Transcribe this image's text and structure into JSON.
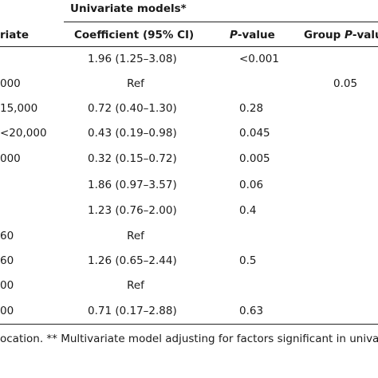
{
  "table": {
    "group_header": "Univariate models*",
    "columns": {
      "variable": "riate",
      "coefficient": "Coefficient (95% CI)",
      "p_value": {
        "italic": "P",
        "rest": "-value"
      },
      "group_p_value": {
        "lead": "Group ",
        "italic": "P",
        "rest": "-valu"
      }
    },
    "rows": [
      {
        "coefficient": "1.96 (1.25–3.08)",
        "p_value": "<0.001"
      },
      {
        "variable": "000",
        "coefficient": "Ref",
        "group_p_value": "0.05"
      },
      {
        "variable": "15,000",
        "coefficient": "0.72 (0.40–1.30)",
        "p_value": "0.28"
      },
      {
        "variable": "<20,000",
        "coefficient": "0.43 (0.19–0.98)",
        "p_value": "0.045"
      },
      {
        "variable": "000",
        "coefficient": "0.32 (0.15–0.72)",
        "p_value": "0.005"
      },
      {
        "coefficient": "1.86 (0.97–3.57)",
        "p_value": "0.06"
      },
      {
        "coefficient": "1.23 (0.76–2.00)",
        "p_value": "0.4"
      },
      {
        "variable": "60",
        "coefficient": "Ref"
      },
      {
        "variable": "60",
        "coefficient": "1.26 (0.65–2.44)",
        "p_value": "0.5"
      },
      {
        "variable": "00",
        "coefficient": "Ref"
      },
      {
        "variable": "00",
        "coefficient": "0.71 (0.17–2.88)",
        "p_value": "0.63"
      }
    ],
    "footnote": "ocation. ** Multivariate model adjusting for factors significant in univaria"
  }
}
